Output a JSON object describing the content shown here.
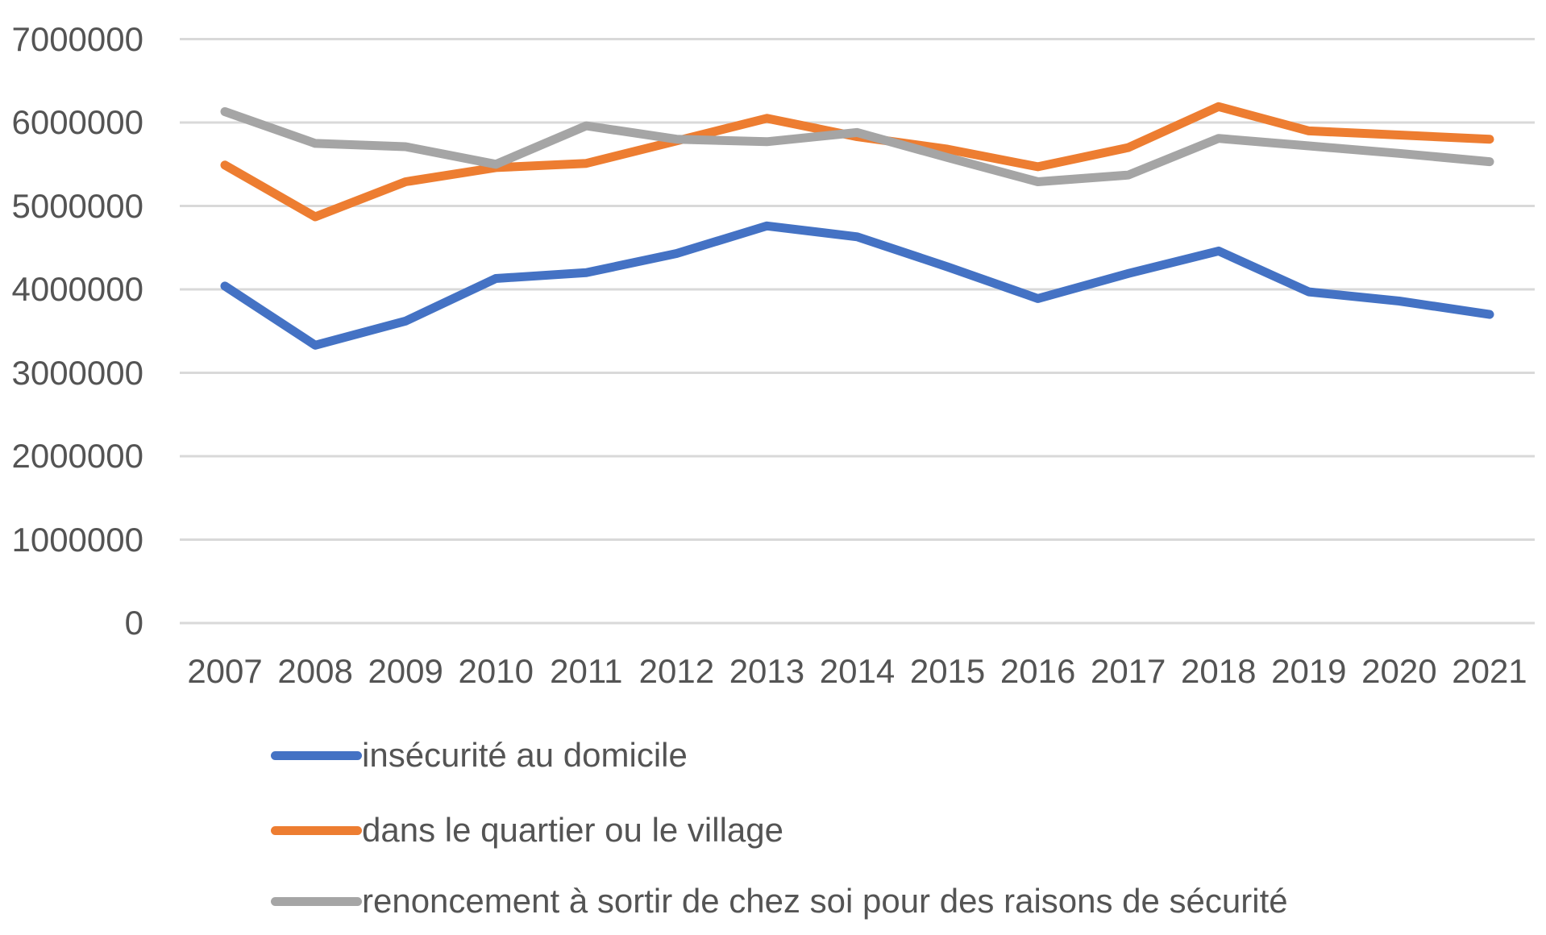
{
  "chart_data": {
    "type": "line",
    "categories": [
      "2007",
      "2008",
      "2009",
      "2010",
      "2011",
      "2012",
      "2013",
      "2014",
      "2015",
      "2016",
      "2017",
      "2018",
      "2019",
      "2020",
      "2021"
    ],
    "series": [
      {
        "name": "insécurité au domicile",
        "color": "#4472C4",
        "values": [
          4040000,
          3330000,
          3620000,
          4130000,
          4200000,
          4430000,
          4760000,
          4630000,
          4270000,
          3890000,
          4190000,
          4460000,
          3970000,
          3860000,
          3700000
        ]
      },
      {
        "name": "dans le quartier ou le village",
        "color": "#ED7D31",
        "values": [
          5490000,
          4870000,
          5290000,
          5460000,
          5510000,
          5780000,
          6050000,
          5830000,
          5680000,
          5470000,
          5700000,
          6190000,
          5900000,
          5850000,
          5800000
        ]
      },
      {
        "name": "renoncement à sortir de chez soi pour des raisons de sécurité",
        "color": "#A5A5A5",
        "values": [
          6130000,
          5750000,
          5710000,
          5500000,
          5960000,
          5800000,
          5770000,
          5880000,
          5580000,
          5290000,
          5370000,
          5810000,
          5720000,
          5630000,
          5530000
        ]
      }
    ],
    "title": "",
    "xlabel": "",
    "ylabel": "",
    "ylim": [
      0,
      7000000
    ],
    "ytick_step": 1000000,
    "y_tick_labels": [
      "7000000",
      "6000000",
      "5000000",
      "4000000",
      "3000000",
      "2000000",
      "1000000",
      "0"
    ],
    "grid": true,
    "legend_position": "bottom-left"
  },
  "style": {
    "grid_color": "#D9D9D9",
    "text_color": "#545454",
    "background": "#ffffff"
  }
}
